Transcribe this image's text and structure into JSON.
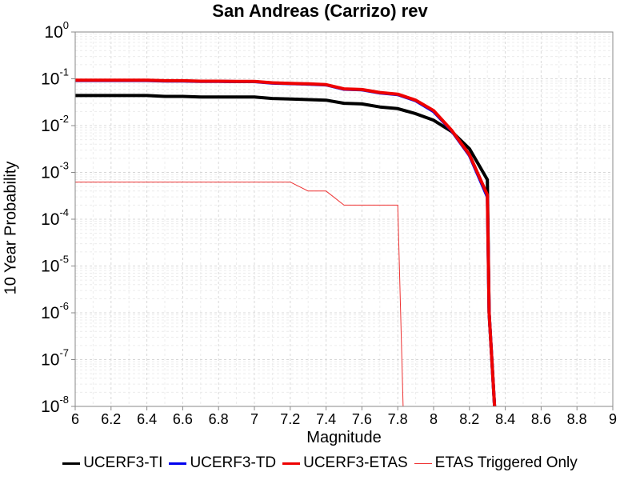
{
  "chart_data": {
    "type": "line",
    "title": "San Andreas (Carrizo) rev",
    "xlabel": "Magnitude",
    "ylabel": "10 Year Probability",
    "xlim": [
      6,
      9
    ],
    "ylim": [
      1e-08,
      1
    ],
    "yscale": "log",
    "grid": true,
    "legend_position": "bottom",
    "x_ticks": [
      "6",
      "6.2",
      "6.4",
      "6.6",
      "6.8",
      "7",
      "7.2",
      "7.4",
      "7.6",
      "7.8",
      "8",
      "8.2",
      "8.4",
      "8.6",
      "8.8",
      "9"
    ],
    "y_ticks": [
      {
        "base": "10",
        "exp": "0"
      },
      {
        "base": "10",
        "exp": "-1"
      },
      {
        "base": "10",
        "exp": "-2"
      },
      {
        "base": "10",
        "exp": "-3"
      },
      {
        "base": "10",
        "exp": "-4"
      },
      {
        "base": "10",
        "exp": "-5"
      },
      {
        "base": "10",
        "exp": "-6"
      },
      {
        "base": "10",
        "exp": "-7"
      },
      {
        "base": "10",
        "exp": "-8"
      }
    ],
    "series": [
      {
        "name": "UCERF3-TI",
        "color": "#000000",
        "style": "thick",
        "x": [
          6.0,
          6.1,
          6.2,
          6.3,
          6.4,
          6.5,
          6.6,
          6.7,
          6.8,
          6.9,
          7.0,
          7.1,
          7.2,
          7.3,
          7.4,
          7.5,
          7.6,
          7.7,
          7.8,
          7.9,
          8.0,
          8.1,
          8.2,
          8.3,
          8.31,
          8.34
        ],
        "y": [
          0.044,
          0.044,
          0.044,
          0.044,
          0.044,
          0.042,
          0.042,
          0.041,
          0.041,
          0.041,
          0.041,
          0.038,
          0.037,
          0.036,
          0.035,
          0.03,
          0.029,
          0.025,
          0.023,
          0.018,
          0.013,
          0.0075,
          0.0032,
          0.0007,
          1e-06,
          1e-08
        ]
      },
      {
        "name": "UCERF3-TD",
        "color": "#0000ee",
        "style": "thick",
        "x": [
          6.0,
          6.1,
          6.2,
          6.3,
          6.4,
          6.5,
          6.6,
          6.7,
          6.8,
          6.9,
          7.0,
          7.1,
          7.2,
          7.3,
          7.4,
          7.5,
          7.6,
          7.7,
          7.8,
          7.9,
          8.0,
          8.1,
          8.2,
          8.3,
          8.31,
          8.34
        ],
        "y": [
          0.092,
          0.092,
          0.092,
          0.092,
          0.092,
          0.09,
          0.09,
          0.088,
          0.088,
          0.087,
          0.087,
          0.081,
          0.079,
          0.077,
          0.074,
          0.06,
          0.058,
          0.05,
          0.046,
          0.034,
          0.02,
          0.0078,
          0.0023,
          0.0003,
          1e-06,
          1e-08
        ]
      },
      {
        "name": "UCERF3-ETAS",
        "color": "#ee0000",
        "style": "thick",
        "x": [
          6.0,
          6.1,
          6.2,
          6.3,
          6.4,
          6.5,
          6.6,
          6.7,
          6.8,
          6.9,
          7.0,
          7.1,
          7.2,
          7.3,
          7.4,
          7.5,
          7.6,
          7.7,
          7.8,
          7.9,
          8.0,
          8.1,
          8.2,
          8.3,
          8.31,
          8.34
        ],
        "y": [
          0.093,
          0.093,
          0.093,
          0.093,
          0.093,
          0.091,
          0.091,
          0.089,
          0.089,
          0.088,
          0.088,
          0.082,
          0.08,
          0.078,
          0.075,
          0.061,
          0.059,
          0.051,
          0.047,
          0.035,
          0.021,
          0.008,
          0.0024,
          0.00033,
          1e-06,
          1e-08
        ]
      },
      {
        "name": "ETAS Triggered Only",
        "color": "#ee3333",
        "style": "thin",
        "x": [
          6.0,
          7.2,
          7.3,
          7.4,
          7.5,
          7.8,
          7.83
        ],
        "y": [
          0.00062,
          0.00062,
          0.0004,
          0.0004,
          0.0002,
          0.0002,
          1e-08
        ]
      }
    ]
  }
}
